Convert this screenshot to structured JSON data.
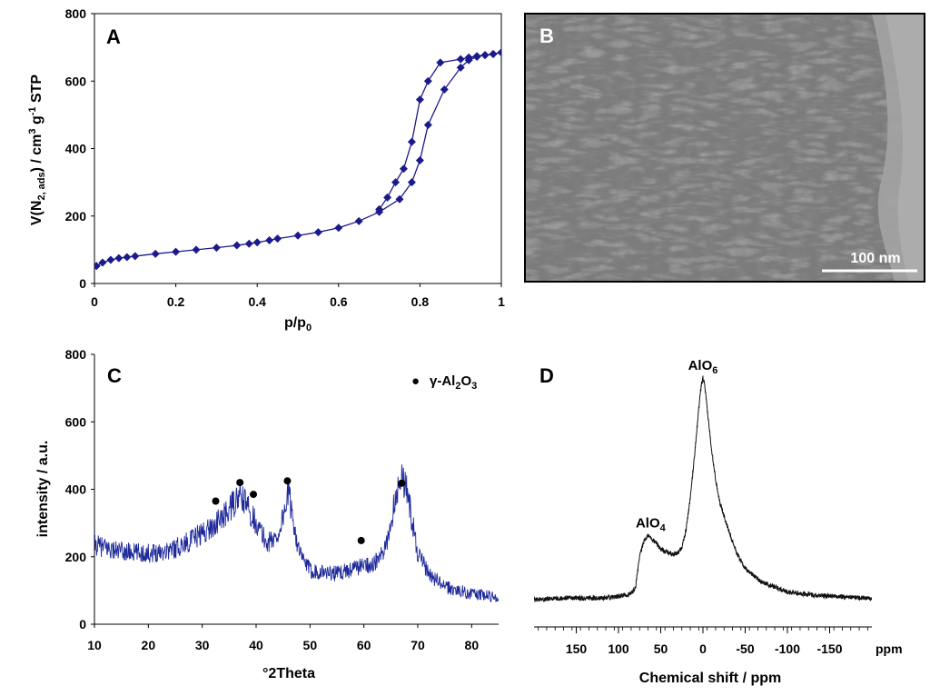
{
  "colors": {
    "isotherm": "#1a1a8c",
    "xrd": "#1f2a9a",
    "nmr": "#111111",
    "tem_bg": "#7a7a7a"
  },
  "chart_data": [
    {
      "panel": "A",
      "type": "line",
      "ylabel_parts": [
        "V(N",
        "2, ads",
        ") / cm",
        "3",
        " g",
        "-1",
        " STP"
      ],
      "xlabel_parts": [
        "p/p",
        "0"
      ],
      "xlim": [
        0,
        1
      ],
      "ylim": [
        0,
        800
      ],
      "xticks": [
        0,
        0.2,
        0.4,
        0.6,
        0.8,
        1
      ],
      "xtick_labels": [
        "0",
        "0.2",
        "0.4",
        "0.6",
        "0.8",
        "1"
      ],
      "yticks": [
        0,
        200,
        400,
        600,
        800
      ],
      "ytick_labels": [
        "0",
        "200",
        "400",
        "600",
        "800"
      ],
      "markers": "diamond",
      "series": [
        {
          "role": "adsorption",
          "x": [
            0.005,
            0.02,
            0.04,
            0.06,
            0.08,
            0.1,
            0.15,
            0.2,
            0.25,
            0.3,
            0.35,
            0.38,
            0.4,
            0.43,
            0.45,
            0.5,
            0.55,
            0.6,
            0.65,
            0.7,
            0.75,
            0.78,
            0.8,
            0.82,
            0.86,
            0.9,
            0.92,
            0.94,
            0.96,
            0.98,
            1.0
          ],
          "y": [
            52,
            62,
            70,
            75,
            78,
            81,
            88,
            94,
            100,
            106,
            113,
            118,
            122,
            128,
            133,
            142,
            152,
            165,
            185,
            212,
            250,
            300,
            365,
            470,
            575,
            640,
            662,
            672,
            677,
            680,
            685
          ]
        },
        {
          "role": "desorption",
          "x": [
            0.7,
            0.72,
            0.74,
            0.76,
            0.78,
            0.8,
            0.82,
            0.85,
            0.9,
            0.92,
            0.94,
            0.96,
            0.98,
            1.0
          ],
          "y": [
            220,
            255,
            300,
            340,
            420,
            545,
            600,
            655,
            665,
            670,
            674,
            677,
            680,
            685
          ]
        }
      ]
    },
    {
      "panel": "C",
      "type": "line",
      "ylabel": "intensity / a.u.",
      "xlabel": "°2Theta",
      "xlim": [
        10,
        85
      ],
      "ylim": [
        0,
        800
      ],
      "xticks": [
        10,
        20,
        30,
        40,
        50,
        60,
        70,
        80
      ],
      "xtick_labels": [
        "10",
        "20",
        "30",
        "40",
        "50",
        "60",
        "70",
        "80"
      ],
      "yticks": [
        0,
        200,
        400,
        600,
        800
      ],
      "ytick_labels": [
        "0",
        "200",
        "400",
        "600",
        "800"
      ],
      "legend": {
        "marker": "●",
        "label_parts": [
          "γ-Al",
          "2",
          "O",
          "3"
        ]
      },
      "series": [
        {
          "x": [
            10,
            15,
            20,
            25,
            28,
            30,
            32,
            34,
            36,
            37,
            38,
            39,
            40,
            42,
            44,
            45,
            46,
            47,
            48,
            50,
            55,
            58,
            60,
            62,
            64,
            65,
            66,
            67,
            68,
            69,
            70,
            72,
            75,
            80,
            85
          ],
          "y": [
            235,
            215,
            210,
            225,
            250,
            270,
            290,
            320,
            360,
            380,
            360,
            330,
            300,
            240,
            260,
            320,
            390,
            300,
            210,
            160,
            150,
            165,
            175,
            180,
            220,
            300,
            390,
            440,
            400,
            300,
            210,
            150,
            110,
            90,
            80
          ]
        }
      ],
      "reflection_markers": [
        {
          "x": 32.5,
          "y": 365
        },
        {
          "x": 37,
          "y": 420
        },
        {
          "x": 39.5,
          "y": 385
        },
        {
          "x": 45.8,
          "y": 425
        },
        {
          "x": 59.5,
          "y": 248
        },
        {
          "x": 67,
          "y": 418
        }
      ]
    },
    {
      "panel": "D",
      "type": "line",
      "xlabel": "Chemical shift / ppm",
      "xlim": [
        200,
        -200
      ],
      "ylim": [
        0,
        700
      ],
      "xticks": [
        150,
        100,
        50,
        0,
        -50,
        -100,
        -150
      ],
      "xtick_labels": [
        "150",
        "100",
        "50",
        "0",
        "-50",
        "-100",
        "-150"
      ],
      "x_unit_label": "ppm",
      "series": [
        {
          "x": [
            200,
            180,
            160,
            140,
            120,
            100,
            85,
            80,
            75,
            70,
            65,
            60,
            55,
            50,
            45,
            40,
            35,
            30,
            25,
            20,
            15,
            10,
            5,
            2,
            0,
            -2,
            -5,
            -10,
            -15,
            -20,
            -30,
            -40,
            -50,
            -70,
            -100,
            -130,
            -160,
            -190,
            -200
          ],
          "y": [
            70,
            72,
            75,
            73,
            74,
            78,
            85,
            100,
            180,
            220,
            235,
            225,
            215,
            200,
            195,
            190,
            185,
            190,
            205,
            250,
            330,
            440,
            560,
            620,
            640,
            620,
            560,
            460,
            380,
            320,
            250,
            190,
            150,
            115,
            90,
            82,
            78,
            75,
            72
          ]
        }
      ],
      "annotations": [
        {
          "text_parts": [
            "AlO",
            "6"
          ],
          "x": 0,
          "y": 660
        },
        {
          "text_parts": [
            "AlO",
            "4"
          ],
          "x": 62,
          "y": 255
        }
      ]
    }
  ],
  "panels": {
    "A": {
      "letter": "A"
    },
    "B": {
      "letter": "B",
      "scale_bar": "100 nm"
    },
    "C": {
      "letter": "C"
    },
    "D": {
      "letter": "D"
    }
  }
}
